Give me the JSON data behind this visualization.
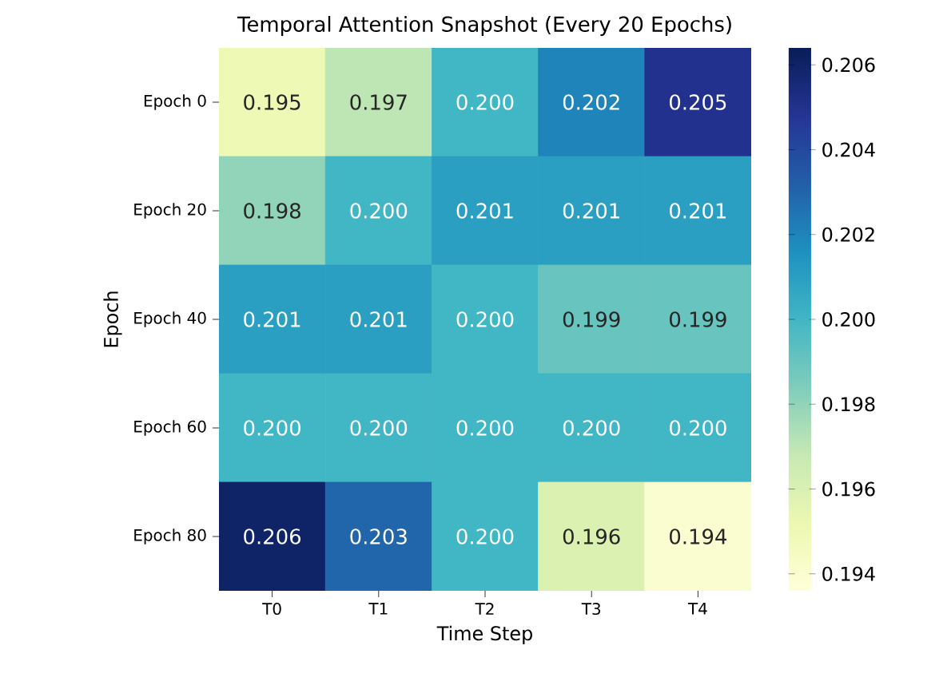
{
  "chart_data": {
    "type": "heatmap",
    "title": "Temporal Attention Snapshot (Every 20 Epochs)",
    "xlabel": "Time Step",
    "ylabel": "Epoch",
    "categories": [
      "T0",
      "T1",
      "T2",
      "T3",
      "T4"
    ],
    "y_categories": [
      "Epoch 0",
      "Epoch 20",
      "Epoch 40",
      "Epoch 60",
      "Epoch 80"
    ],
    "cells": [
      [
        0.195,
        0.197,
        0.2,
        0.202,
        0.205
      ],
      [
        0.198,
        0.2,
        0.201,
        0.201,
        0.201
      ],
      [
        0.201,
        0.201,
        0.2,
        0.199,
        0.199
      ],
      [
        0.2,
        0.2,
        0.2,
        0.2,
        0.2
      ],
      [
        0.206,
        0.203,
        0.2,
        0.196,
        0.194
      ]
    ],
    "cell_labels": [
      [
        "0.195",
        "0.197",
        "0.200",
        "0.202",
        "0.205"
      ],
      [
        "0.198",
        "0.200",
        "0.201",
        "0.201",
        "0.201"
      ],
      [
        "0.201",
        "0.201",
        "0.200",
        "0.199",
        "0.199"
      ],
      [
        "0.200",
        "0.200",
        "0.200",
        "0.200",
        "0.200"
      ],
      [
        "0.206",
        "0.203",
        "0.200",
        "0.196",
        "0.194"
      ]
    ],
    "clim": [
      0.1936,
      0.2064
    ],
    "cticks": [
      0.194,
      0.196,
      0.198,
      {
        "value": 0.2,
        "label": "0.200"
      },
      0.202,
      0.204,
      0.206
    ]
  }
}
